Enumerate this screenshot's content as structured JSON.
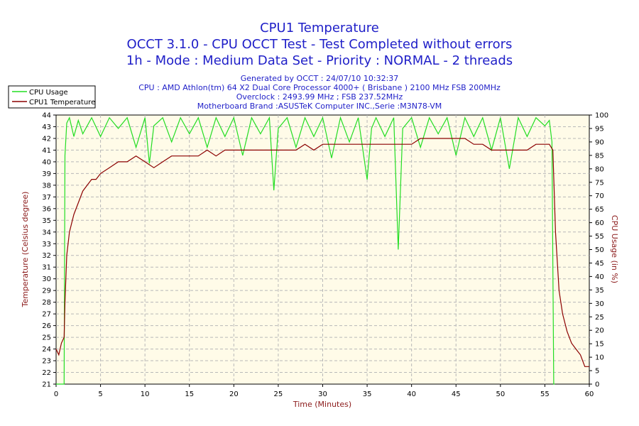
{
  "title": "CPU1 Temperature",
  "subtitle1": "OCCT 3.1.0 - CPU OCCT Test - Test Completed without errors",
  "subtitle2": "1h - Mode : Medium Data Set - Priority : NORMAL - 2 threads",
  "info": [
    "Generated by OCCT : 24/07/10 10:32:37",
    "CPU : AMD Athlon(tm) 64 X2 Dual Core Processor 4000+ ( Brisbane ) 2100 MHz FSB 200MHz",
    "Overclock : 2493.99 MHz ; FSB 237.52MHz",
    "Motherboard Brand :ASUSTeK Computer INC.,Serie :M3N78-VM"
  ],
  "colors": {
    "title": "#1f1fc8",
    "plot_bg": "#fffbe8",
    "grid": "#b8b8b8",
    "usage": "#22dd22",
    "temp": "#8b0000",
    "axis_label": "#8b1a1a"
  },
  "chart_data": {
    "type": "line",
    "xlabel": "Time (Minutes)",
    "ylabel_left": "Temperature (Celsius degree)",
    "ylabel_right": "CPU Usage (in %)",
    "xlim": [
      0,
      60
    ],
    "ylim_left": [
      21,
      44
    ],
    "ylim_right": [
      0,
      100
    ],
    "x_ticks": [
      0,
      5,
      10,
      15,
      20,
      25,
      30,
      35,
      40,
      45,
      50,
      55,
      60
    ],
    "y_left_ticks": [
      21,
      22,
      23,
      24,
      25,
      26,
      27,
      28,
      29,
      30,
      31,
      32,
      33,
      34,
      35,
      36,
      37,
      38,
      39,
      40,
      41,
      42,
      43,
      44
    ],
    "y_right_ticks": [
      0,
      5,
      10,
      15,
      20,
      25,
      30,
      35,
      40,
      45,
      50,
      55,
      60,
      65,
      70,
      75,
      80,
      85,
      90,
      95,
      100
    ],
    "grid": true,
    "legend_position": "top-left",
    "series": [
      {
        "name": "CPU Usage",
        "axis": "right",
        "x": [
          0,
          0.9,
          1.0,
          1.2,
          1.5,
          2,
          2.5,
          3,
          4,
          5,
          6,
          7,
          8,
          9,
          10,
          10.5,
          11,
          12,
          13,
          14,
          15,
          16,
          17,
          18,
          19,
          20,
          21,
          22,
          23,
          24,
          24.5,
          25,
          26,
          27,
          28,
          29,
          30,
          31,
          32,
          33,
          34,
          35,
          35.5,
          36,
          37,
          38,
          38.5,
          39,
          40,
          41,
          42,
          43,
          44,
          45,
          46,
          47,
          48,
          49,
          50,
          51,
          52,
          53,
          54,
          55,
          55.5,
          55.8,
          56.0,
          56.1
        ],
        "values": [
          0,
          0,
          85,
          97,
          99,
          92,
          98,
          93,
          99,
          92,
          99,
          95,
          99,
          88,
          99,
          82,
          96,
          99,
          90,
          99,
          93,
          99,
          88,
          99,
          92,
          99,
          85,
          99,
          93,
          99,
          72,
          95,
          99,
          88,
          99,
          92,
          99,
          84,
          99,
          90,
          99,
          76,
          95,
          99,
          92,
          99,
          50,
          95,
          99,
          88,
          99,
          93,
          99,
          85,
          99,
          92,
          99,
          87,
          99,
          80,
          99,
          92,
          99,
          96,
          98,
          90,
          0,
          0
        ]
      },
      {
        "name": "CPU1 Temperature",
        "axis": "left",
        "x": [
          0,
          0.3,
          0.6,
          0.9,
          1.0,
          1.2,
          1.5,
          2.0,
          2.5,
          3.0,
          3.5,
          4.0,
          4.5,
          5.0,
          6.0,
          7.0,
          8.0,
          9.0,
          10.0,
          11.0,
          12.0,
          13.0,
          14.0,
          15.0,
          16.0,
          17.0,
          18.0,
          19.0,
          20.0,
          21.0,
          22.0,
          23.0,
          24.0,
          25.0,
          26.0,
          27.0,
          28.0,
          29.0,
          30.0,
          31.0,
          32.0,
          33.0,
          34.0,
          35.0,
          36.0,
          37.0,
          38.0,
          39.0,
          40.0,
          41.0,
          42.0,
          43.0,
          44.0,
          45.0,
          46.0,
          47.0,
          48.0,
          49.0,
          50.0,
          51.0,
          52.0,
          53.0,
          54.0,
          55.0,
          55.5,
          55.9,
          56.2,
          56.6,
          57.0,
          57.5,
          58.0,
          58.5,
          59.0,
          59.5,
          60.0
        ],
        "values": [
          24,
          23.5,
          24.5,
          25,
          28,
          32,
          34,
          35.5,
          36.5,
          37.5,
          38,
          38.5,
          38.5,
          39,
          39.5,
          40,
          40,
          40.5,
          40,
          39.5,
          40,
          40.5,
          40.5,
          40.5,
          40.5,
          41,
          40.5,
          41,
          41,
          41,
          41,
          41,
          41,
          41,
          41,
          41,
          41.5,
          41,
          41.5,
          41.5,
          41.5,
          41.5,
          41.5,
          41.5,
          41.5,
          41.5,
          41.5,
          41.5,
          41.5,
          42,
          42,
          42,
          42,
          42,
          42,
          41.5,
          41.5,
          41,
          41,
          41,
          41,
          41,
          41.5,
          41.5,
          41.5,
          41,
          34,
          29,
          27,
          25.5,
          24.5,
          24,
          23.5,
          22.5,
          22.5
        ]
      }
    ]
  },
  "legend": {
    "usage_label": "CPU Usage",
    "temp_label": "CPU1 Temperature"
  }
}
